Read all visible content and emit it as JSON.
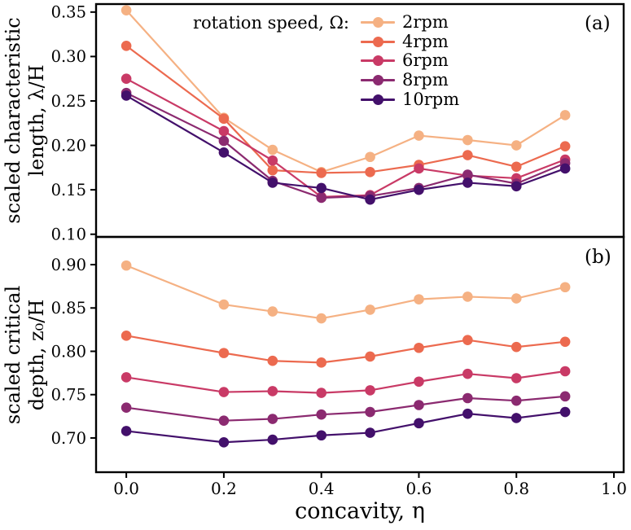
{
  "figure": {
    "panel_a_label": "(a)",
    "panel_b_label": "(b)",
    "xlabel": "concavity, η",
    "ylabel_a": [
      "scaled characteristic",
      "length, λ/H"
    ],
    "ylabel_b": [
      "scaled critical",
      "depth, z₀/H"
    ]
  },
  "legend": {
    "title": "rotation speed, Ω:",
    "entries": [
      {
        "label": "2rpm",
        "color": "#f5b183"
      },
      {
        "label": "4rpm",
        "color": "#ec6a4f"
      },
      {
        "label": "6rpm",
        "color": "#c93a66"
      },
      {
        "label": "8rpm",
        "color": "#8b2a70"
      },
      {
        "label": "10rpm",
        "color": "#43106b"
      }
    ]
  },
  "chart_data": [
    {
      "type": "line",
      "panel": "(a)",
      "title": "",
      "xlabel": "",
      "ylabel": "scaled characteristic length, λ/H",
      "x": [
        0.0,
        0.2,
        0.3,
        0.4,
        0.5,
        0.6,
        0.7,
        0.8,
        0.9
      ],
      "xlim": [
        -0.062,
        1.02
      ],
      "ylim": [
        0.097,
        0.359
      ],
      "yticks": [
        0.1,
        0.15,
        0.2,
        0.25,
        0.3,
        0.35
      ],
      "ytick_labels": [
        "0.10",
        "0.15",
        "0.20",
        "0.25",
        "0.30",
        "0.35"
      ],
      "xticks": [
        0.0,
        0.2,
        0.4,
        0.6,
        0.8,
        1.0
      ],
      "xtick_labels": [
        "0.0",
        "0.2",
        "0.4",
        "0.6",
        "0.8",
        "1.0"
      ],
      "grid": false,
      "legend_position": "upper center inside",
      "series": [
        {
          "name": "2rpm",
          "color": "#f5b183",
          "values": [
            0.352,
            0.231,
            0.195,
            0.17,
            0.187,
            0.211,
            0.206,
            0.2,
            0.234
          ]
        },
        {
          "name": "4rpm",
          "color": "#ec6a4f",
          "values": [
            0.312,
            0.23,
            0.172,
            0.169,
            0.17,
            0.178,
            0.189,
            0.176,
            0.199
          ]
        },
        {
          "name": "6rpm",
          "color": "#c93a66",
          "values": [
            0.275,
            0.216,
            0.183,
            0.142,
            0.144,
            0.174,
            0.166,
            0.163,
            0.184
          ]
        },
        {
          "name": "8rpm",
          "color": "#8b2a70",
          "values": [
            0.259,
            0.205,
            0.16,
            0.141,
            0.143,
            0.152,
            0.167,
            0.157,
            0.18
          ]
        },
        {
          "name": "10rpm",
          "color": "#43106b",
          "values": [
            0.256,
            0.192,
            0.158,
            0.152,
            0.139,
            0.15,
            0.158,
            0.154,
            0.174
          ]
        }
      ]
    },
    {
      "type": "line",
      "panel": "(b)",
      "title": "",
      "xlabel": "concavity, η",
      "ylabel": "scaled critical depth, z₀/H",
      "x": [
        0.0,
        0.2,
        0.3,
        0.4,
        0.5,
        0.6,
        0.7,
        0.8,
        0.9
      ],
      "xlim": [
        -0.062,
        1.02
      ],
      "ylim": [
        0.6605,
        0.932
      ],
      "yticks": [
        0.7,
        0.75,
        0.8,
        0.85,
        0.9
      ],
      "ytick_labels": [
        "0.70",
        "0.75",
        "0.80",
        "0.85",
        "0.90"
      ],
      "xticks": [
        0.0,
        0.2,
        0.4,
        0.6,
        0.8,
        1.0
      ],
      "xtick_labels": [
        "0.0",
        "0.2",
        "0.4",
        "0.6",
        "0.8",
        "1.0"
      ],
      "grid": false,
      "series": [
        {
          "name": "2rpm",
          "color": "#f5b183",
          "values": [
            0.899,
            0.854,
            0.846,
            0.838,
            0.848,
            0.86,
            0.863,
            0.861,
            0.874
          ]
        },
        {
          "name": "4rpm",
          "color": "#ec6a4f",
          "values": [
            0.818,
            0.798,
            0.789,
            0.787,
            0.794,
            0.804,
            0.813,
            0.805,
            0.811
          ]
        },
        {
          "name": "6rpm",
          "color": "#c93a66",
          "values": [
            0.77,
            0.753,
            0.754,
            0.752,
            0.755,
            0.765,
            0.774,
            0.769,
            0.777
          ]
        },
        {
          "name": "8rpm",
          "color": "#8b2a70",
          "values": [
            0.735,
            0.72,
            0.722,
            0.727,
            0.73,
            0.738,
            0.746,
            0.743,
            0.748
          ]
        },
        {
          "name": "10rpm",
          "color": "#43106b",
          "values": [
            0.708,
            0.695,
            0.698,
            0.703,
            0.706,
            0.717,
            0.728,
            0.723,
            0.73
          ]
        }
      ]
    }
  ]
}
